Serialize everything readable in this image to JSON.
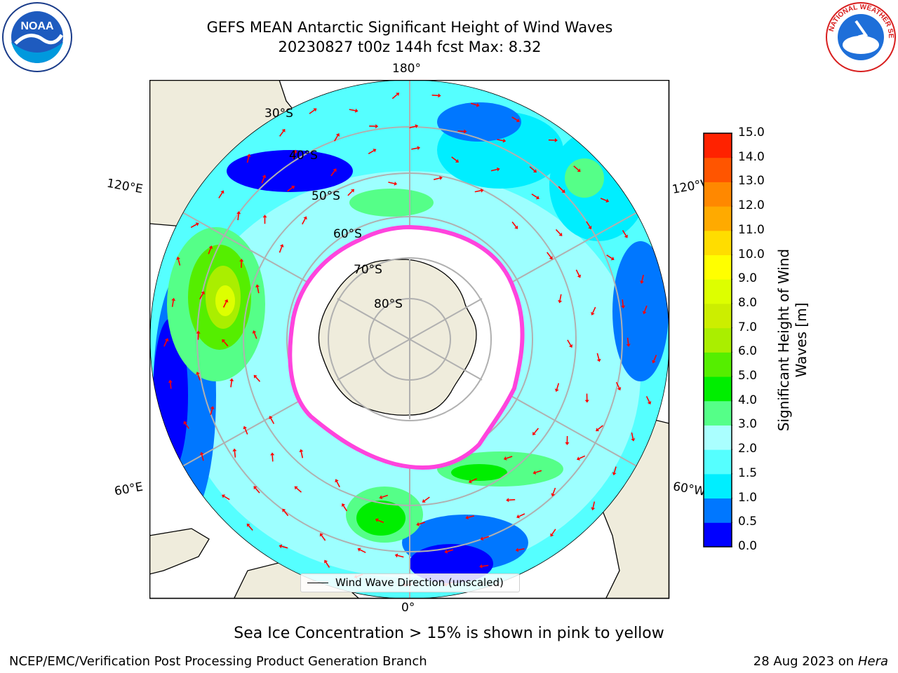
{
  "title": {
    "line1": "GEFS MEAN Antarctic Significant Height of Wind Waves",
    "line2": "20230827 t00z 144h fcst   Max: 8.32"
  },
  "map": {
    "projection": "south-polar-stereographic",
    "longitude_labels": {
      "top": "180°",
      "bottom": "0°",
      "left_upper": "120°E",
      "left_lower": "60°E",
      "right_upper": "120°W",
      "right_lower": "60°W"
    },
    "latitude_labels": [
      "30°S",
      "40°S",
      "50°S",
      "60°S",
      "70°S",
      "80°S"
    ],
    "colors": {
      "land": "#efecdc",
      "grid": "#b0b0b0",
      "arrow": "#ff0000",
      "ice_edge": "#ff44dd"
    }
  },
  "legend": {
    "label": "Wind Wave Direction (unscaled)"
  },
  "colorbar": {
    "title_line1": "Significant Height of Wind",
    "title_line2": "Waves [m]",
    "ticks": [
      "0.0",
      "0.5",
      "1.0",
      "1.5",
      "2.0",
      "3.0",
      "4.0",
      "5.0",
      "6.0",
      "7.0",
      "8.0",
      "9.0",
      "10.0",
      "11.0",
      "12.0",
      "13.0",
      "14.0",
      "15.0"
    ],
    "colors": [
      "#0000ff",
      "#0077ff",
      "#00eeff",
      "#55ffff",
      "#aaffff",
      "#55ff88",
      "#00ee00",
      "#55ee00",
      "#aaee00",
      "#ccee00",
      "#ddff00",
      "#ffff00",
      "#ffdd00",
      "#ffaa00",
      "#ff8800",
      "#ff5500",
      "#ff2200",
      "#ff0000"
    ]
  },
  "caption": "Sea Ice Concentration > 15% is shown in pink to yellow",
  "footer": {
    "left": "NCEP/EMC/Verification Post Processing Product Generation Branch",
    "right_date": "28 Aug 2023 on",
    "right_host": "Hera"
  },
  "logos": {
    "left": "NOAA",
    "right": "NATIONAL WEATHER SERVICE"
  }
}
